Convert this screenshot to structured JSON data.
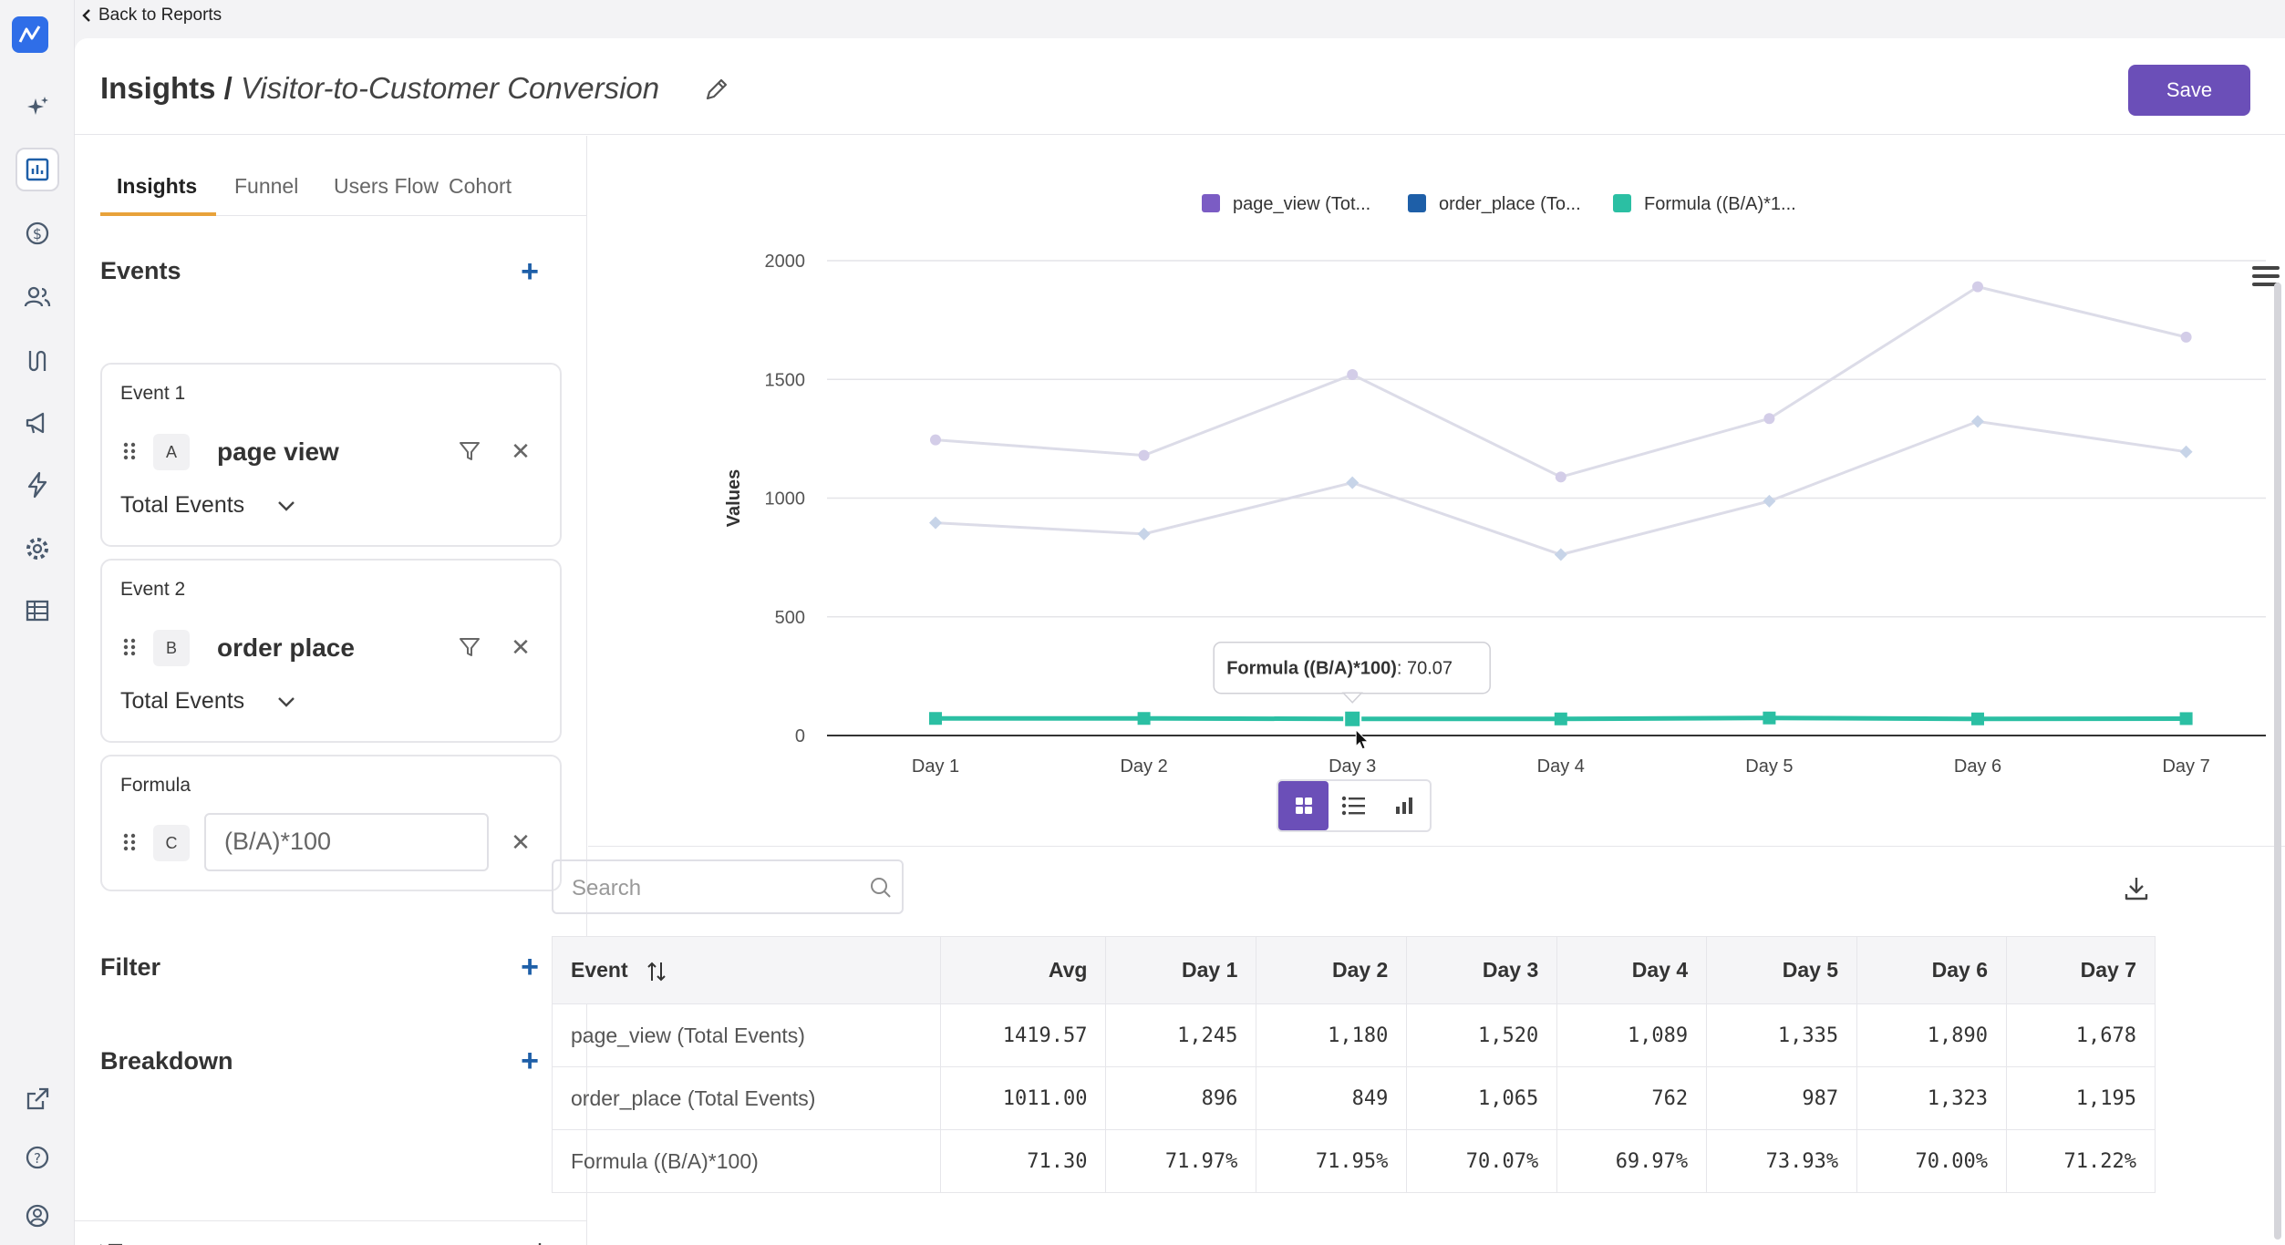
{
  "back": {
    "label": "Back to Reports"
  },
  "header": {
    "crumb": "Insights /",
    "report_name": "Visitor-to-Customer Conversion",
    "save_label": "Save"
  },
  "tabs": [
    "Insights",
    "Funnel",
    "Users Flow",
    "Cohort"
  ],
  "events_section": {
    "title": "Events"
  },
  "events": [
    {
      "label": "Event 1",
      "letter": "A",
      "name": "page view",
      "aggregation": "Total Events"
    },
    {
      "label": "Event 2",
      "letter": "B",
      "name": "order place",
      "aggregation": "Total Events"
    }
  ],
  "formula": {
    "label": "Formula",
    "letter": "C",
    "expression": "(B/A)*100"
  },
  "filter_section": {
    "title": "Filter"
  },
  "breakdown_section": {
    "title": "Breakdown"
  },
  "search": {
    "placeholder": "Search"
  },
  "colors": {
    "accent": "#6b4fb8",
    "series_a": "#7b5cc4",
    "series_b": "#1e5fa8",
    "series_c": "#2bbfa3"
  },
  "chart_data": {
    "type": "line",
    "categories": [
      "Day 1",
      "Day 2",
      "Day 3",
      "Day 4",
      "Day 5",
      "Day 6",
      "Day 7"
    ],
    "ylabel": "Values",
    "ylim": [
      0,
      2000
    ],
    "yticks": [
      0,
      500,
      1000,
      1500,
      2000
    ],
    "legend_position": "top",
    "series": [
      {
        "name": "page_view (Tot...",
        "values": [
          1245,
          1180,
          1520,
          1089,
          1335,
          1890,
          1678
        ]
      },
      {
        "name": "order_place (To...",
        "values": [
          896,
          849,
          1065,
          762,
          987,
          1323,
          1195
        ]
      },
      {
        "name": "Formula ((B/A)*1...",
        "values": [
          71.97,
          71.95,
          70.07,
          69.97,
          73.93,
          70.0,
          71.22
        ]
      }
    ],
    "tooltip": {
      "series": "Formula ((B/A)*100)",
      "value": "70.07"
    }
  },
  "table": {
    "columns": [
      "Event",
      "Avg",
      "Day 1",
      "Day 2",
      "Day 3",
      "Day 4",
      "Day 5",
      "Day 6",
      "Day 7"
    ],
    "rows": [
      [
        "page_view (Total Events)",
        "1419.57",
        "1,245",
        "1,180",
        "1,520",
        "1,089",
        "1,335",
        "1,890",
        "1,678"
      ],
      [
        "order_place (Total Events)",
        "1011.00",
        "896",
        "849",
        "1,065",
        "762",
        "987",
        "1,323",
        "1,195"
      ],
      [
        "Formula ((B/A)*100)",
        "71.30",
        "71.97%",
        "71.95%",
        "70.07%",
        "69.97%",
        "73.93%",
        "70.00%",
        "71.22%"
      ]
    ]
  }
}
